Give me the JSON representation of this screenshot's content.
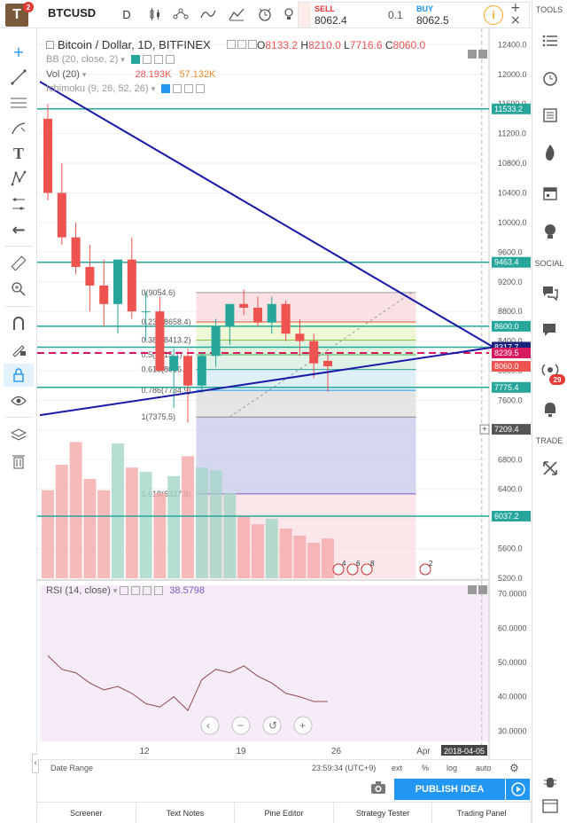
{
  "header": {
    "logo_letter": "T",
    "logo_badge": "2",
    "symbol": "BTCUSD",
    "interval": "D"
  },
  "trade": {
    "sell_label": "SELL",
    "sell_value": "8062.4",
    "spread": "0.1",
    "buy_label": "BUY",
    "buy_value": "8062.5"
  },
  "chart": {
    "title": "Bitcoin / Dollar, 1D, BITFINEX",
    "ohlc": {
      "o_label": "O",
      "o": "8133.2",
      "h_label": "H",
      "h": "8210.0",
      "l_label": "L",
      "l": "7716.6",
      "c_label": "C",
      "c": "8060.0"
    },
    "bb_label": "BB (20, close, 2)",
    "vol_label": "Vol (20)",
    "vol_value1": "28.193K",
    "vol_value2": "57.132K",
    "ichimoku_label": "Ichimoku (9, 26, 52, 26)",
    "rsi_label": "RSI (14, close)",
    "rsi_value": "38.5798",
    "price_ticks": [
      "12400.0",
      "12000.0",
      "11600.0",
      "11200.0",
      "10800.0",
      "10400.0",
      "10000.0",
      "9600.0",
      "9200.0",
      "8800.0",
      "8400.0",
      "8000.0",
      "7600.0",
      "7200.0",
      "6800.0",
      "6400.0",
      "6000.0",
      "5600.0",
      "5200.0"
    ],
    "rsi_ticks": [
      "70.0000",
      "60.0000",
      "50.0000",
      "40.0000",
      "30.0000"
    ],
    "x_ticks": [
      "12",
      "19",
      "26",
      "Apr"
    ],
    "date_tag": "2018-04-05",
    "price_tags": [
      {
        "label": "11533.2",
        "color": "#26a69a"
      },
      {
        "label": "9463.4",
        "color": "#26a69a"
      },
      {
        "label": "8600.0",
        "color": "#26a69a"
      },
      {
        "label": "8317.7",
        "color": "#1a237e"
      },
      {
        "label": "8239.5",
        "color": "#d81b60"
      },
      {
        "label": "8060.0",
        "color": "#ef5350"
      },
      {
        "label": "7775.4",
        "color": "#26a69a"
      },
      {
        "label": "7209.4",
        "color": "#555555"
      },
      {
        "label": "6037.2",
        "color": "#26a69a"
      }
    ],
    "fib_labels": [
      "0(9054.6)",
      "0.236(8658.4)",
      "0.382(8413.2)",
      "0.5(8215.1)",
      "0.618(8016.9)",
      "0.786(7734.9)",
      "1(7375.5)",
      "1.618(6337.8)"
    ],
    "event_badges": [
      "4",
      "6",
      "8",
      "2"
    ]
  },
  "chart_data": {
    "type": "candlestick",
    "series": [
      {
        "values": [
          {
            "o": 11400,
            "h": 11600,
            "l": 10300,
            "c": 10400
          },
          {
            "o": 10400,
            "h": 10800,
            "l": 9700,
            "c": 9800
          },
          {
            "o": 9800,
            "h": 10000,
            "l": 9300,
            "c": 9400
          },
          {
            "o": 9400,
            "h": 9700,
            "l": 8800,
            "c": 9150
          },
          {
            "o": 9150,
            "h": 9500,
            "l": 8600,
            "c": 8900
          },
          {
            "o": 8900,
            "h": 9400,
            "l": 8500,
            "c": 9500
          },
          {
            "o": 9500,
            "h": 9800,
            "l": 8700,
            "c": 8800
          },
          {
            "o": 8800,
            "h": 9050,
            "l": 8400,
            "c": 8800
          },
          {
            "o": 8800,
            "h": 9000,
            "l": 8000,
            "c": 8000
          },
          {
            "o": 8000,
            "h": 8300,
            "l": 7500,
            "c": 8200
          },
          {
            "o": 8200,
            "h": 8300,
            "l": 7300,
            "c": 7800
          },
          {
            "o": 7800,
            "h": 8250,
            "l": 7700,
            "c": 8200
          },
          {
            "o": 8200,
            "h": 8700,
            "l": 8050,
            "c": 8600
          },
          {
            "o": 8600,
            "h": 8900,
            "l": 8350,
            "c": 8900
          },
          {
            "o": 8900,
            "h": 9100,
            "l": 8750,
            "c": 8850
          },
          {
            "o": 8850,
            "h": 9000,
            "l": 8600,
            "c": 8650
          },
          {
            "o": 8650,
            "h": 9000,
            "l": 8500,
            "c": 8900
          },
          {
            "o": 8900,
            "h": 8950,
            "l": 8400,
            "c": 8500
          },
          {
            "o": 8500,
            "h": 8700,
            "l": 8200,
            "c": 8400
          },
          {
            "o": 8400,
            "h": 8500,
            "l": 7900,
            "c": 8100
          },
          {
            "o": 8133.2,
            "h": 8210,
            "l": 7716.6,
            "c": 8060
          }
        ]
      }
    ],
    "volumes": [
      62,
      80,
      96,
      70,
      62,
      95,
      78,
      75,
      60,
      72,
      86,
      78,
      76,
      60,
      44,
      38,
      42,
      35,
      30,
      25,
      28
    ],
    "rsi": [
      52,
      48,
      47,
      44,
      42,
      43,
      41,
      38,
      37,
      40,
      36,
      45,
      48,
      47,
      49,
      46,
      44,
      41,
      40,
      38.6,
      38.6
    ],
    "x_ticks": [
      "12",
      "19",
      "26",
      "Apr"
    ],
    "ylim": [
      5200,
      12500
    ],
    "rsi_ylim": [
      28,
      72
    ]
  },
  "bottom": {
    "date_range": "Date Range",
    "clock": "23:59:34 (UTC+9)",
    "ext": "ext",
    "pct": "%",
    "log": "log",
    "auto": "auto"
  },
  "publish_label": "PUBLISH IDEA",
  "tabs": [
    "Screener",
    "Text Notes",
    "Pine Editor",
    "Strategy Tester",
    "Trading Panel"
  ],
  "right_labels": {
    "tools": "TOOLS",
    "social": "SOCIAL",
    "trade": "TRADE",
    "notif_count": "29"
  }
}
